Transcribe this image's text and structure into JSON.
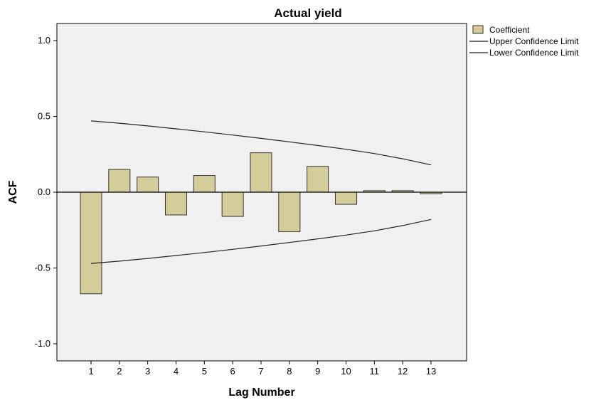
{
  "chart_data": {
    "type": "bar",
    "title": "Actual yield",
    "xlabel": "Lag Number",
    "ylabel": "ACF",
    "categories": [
      "1",
      "2",
      "3",
      "4",
      "5",
      "6",
      "7",
      "8",
      "9",
      "10",
      "11",
      "12",
      "13"
    ],
    "series": [
      {
        "name": "Coefficient",
        "values": [
          -0.67,
          0.15,
          0.1,
          -0.15,
          0.11,
          -0.16,
          0.26,
          -0.26,
          0.17,
          -0.08,
          0.01,
          0.01,
          -0.01
        ]
      }
    ],
    "upper_confidence_limit": [
      0.47,
      0.455,
      0.437,
      0.418,
      0.398,
      0.377,
      0.355,
      0.332,
      0.308,
      0.283,
      0.255,
      0.22,
      0.18
    ],
    "lower_confidence_limit": [
      -0.47,
      -0.455,
      -0.437,
      -0.418,
      -0.398,
      -0.377,
      -0.355,
      -0.332,
      -0.308,
      -0.283,
      -0.255,
      -0.22,
      -0.18
    ],
    "ylim": [
      -1.1,
      1.1
    ],
    "yticks": [
      1.0,
      0.5,
      0.0,
      -0.5,
      -1.0
    ],
    "ytick_labels": [
      "1.0",
      "0.5",
      "0.0",
      "-0.5",
      "-1.0"
    ],
    "legend": {
      "position": "top-right",
      "items": [
        "Coefficient",
        "Upper Confidence Limit",
        "Lower Confidence Limit"
      ]
    },
    "grid": false,
    "colors": {
      "bar_fill": "#d4cc99",
      "bar_stroke": "#333333",
      "line": "#222222",
      "plot_bg": "#f0f0f0"
    }
  }
}
